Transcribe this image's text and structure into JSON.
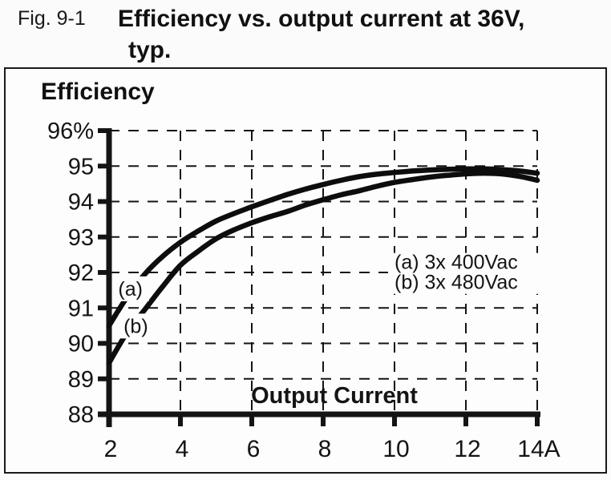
{
  "figure": {
    "label": "Fig. 9-1",
    "title_line1": "Efficiency vs. output current at 36V,",
    "title_line2": "typ."
  },
  "chart_data": {
    "type": "line",
    "title": "Efficiency",
    "xlabel": "Output Current",
    "ylabel": "Efficiency",
    "x_unit": "A",
    "y_unit": "%",
    "xlim": [
      2,
      14
    ],
    "ylim": [
      88,
      96
    ],
    "grid": {
      "style": "dashed",
      "x_values": [
        4,
        6,
        8,
        10,
        12,
        14
      ],
      "y_values": [
        96,
        95,
        94,
        93,
        92,
        91,
        90,
        89
      ]
    },
    "x_ticks": [
      {
        "value": 2,
        "label": "2"
      },
      {
        "value": 4,
        "label": "4"
      },
      {
        "value": 6,
        "label": "6"
      },
      {
        "value": 8,
        "label": "8"
      },
      {
        "value": 10,
        "label": "10"
      },
      {
        "value": 12,
        "label": "12"
      },
      {
        "value": 14,
        "label": "14A"
      }
    ],
    "y_ticks": [
      {
        "value": 96,
        "label": "96%"
      },
      {
        "value": 95,
        "label": "95"
      },
      {
        "value": 94,
        "label": "94"
      },
      {
        "value": 93,
        "label": "93"
      },
      {
        "value": 92,
        "label": "92"
      },
      {
        "value": 91,
        "label": "91"
      },
      {
        "value": 90,
        "label": "90"
      },
      {
        "value": 89,
        "label": "89"
      },
      {
        "value": 88,
        "label": "88"
      }
    ],
    "series": [
      {
        "name": "(a) 3x 400Vac",
        "curve_label": "(a)",
        "curve_label_xy": [
          2.6,
          91.55
        ],
        "x": [
          2,
          2.5,
          3,
          3.5,
          4,
          4.5,
          5,
          5.5,
          6,
          6.5,
          7,
          7.5,
          8,
          8.5,
          9,
          9.5,
          10,
          10.5,
          11,
          11.5,
          12,
          12.5,
          13,
          13.5,
          14
        ],
        "y": [
          90.5,
          91.3,
          91.95,
          92.45,
          92.85,
          93.17,
          93.45,
          93.66,
          93.85,
          94.03,
          94.2,
          94.35,
          94.48,
          94.6,
          94.7,
          94.77,
          94.82,
          94.86,
          94.89,
          94.91,
          94.92,
          94.92,
          94.9,
          94.86,
          94.8
        ]
      },
      {
        "name": "(b) 3x 480Vac",
        "curve_label": "(b)",
        "curve_label_xy": [
          2.75,
          90.5
        ],
        "x": [
          2,
          2.5,
          3,
          3.5,
          4,
          4.5,
          5,
          5.5,
          6,
          6.5,
          7,
          7.5,
          8,
          8.5,
          9,
          9.5,
          10,
          10.5,
          11,
          11.5,
          12,
          12.5,
          13,
          13.5,
          14
        ],
        "y": [
          89.45,
          90.3,
          90.95,
          91.6,
          92.2,
          92.6,
          92.95,
          93.2,
          93.4,
          93.57,
          93.72,
          93.9,
          94.05,
          94.19,
          94.3,
          94.43,
          94.54,
          94.62,
          94.69,
          94.74,
          94.78,
          94.8,
          94.78,
          94.71,
          94.6
        ]
      }
    ],
    "legend": {
      "items": [
        "(a) 3x 400Vac",
        "(b) 3x 480Vac"
      ],
      "anchor_xy": [
        10.0,
        92.3
      ],
      "position": "inside-right"
    }
  },
  "colors": {
    "background": "#fdfdfd",
    "ink": "#141414",
    "curve": "#0d0d0d",
    "box_border": "#1a1a1a"
  }
}
